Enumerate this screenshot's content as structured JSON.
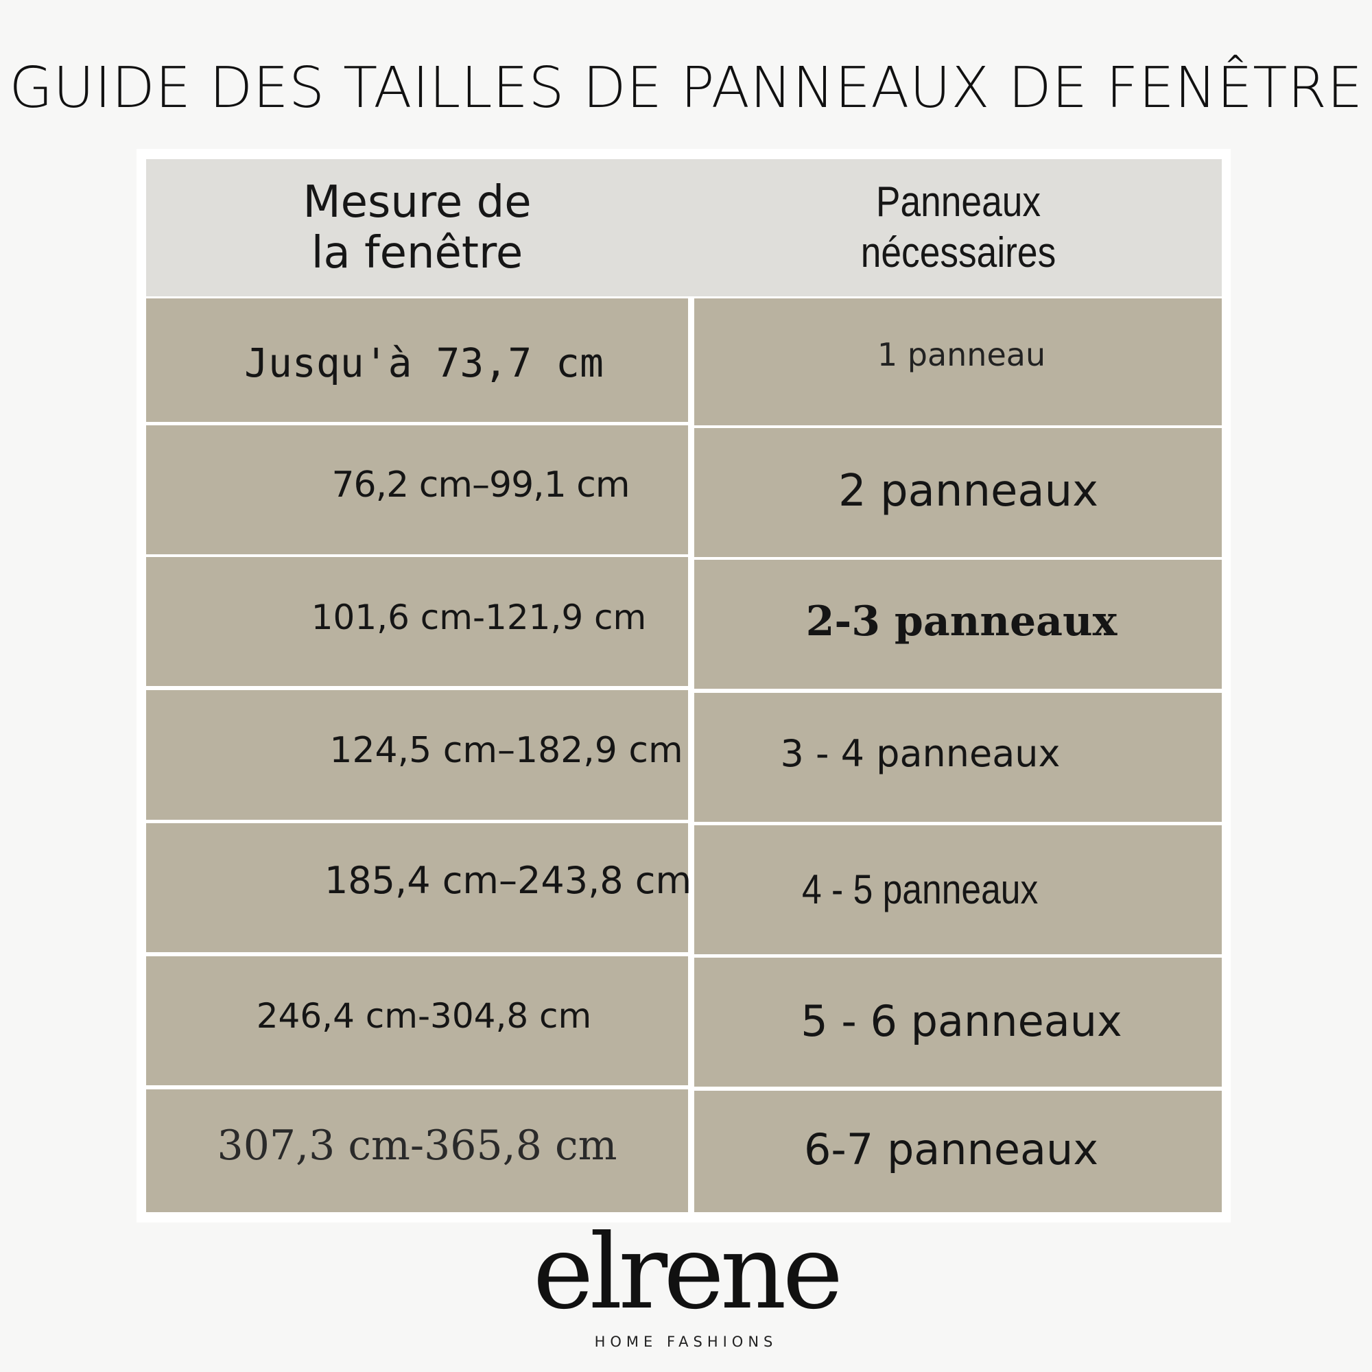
{
  "title": "GUIDE DES TAILLES DE PANNEAUX DE FENÊTRE",
  "table": {
    "headers": {
      "measure_line1": "Mesure de",
      "measure_line2": "la fenêtre",
      "panels_line1": "Panneaux",
      "panels_line2": "nécessaires"
    },
    "rows": [
      {
        "measure": "Jusqu'à 73,7 cm",
        "panels": "1 panneau"
      },
      {
        "measure": "76,2 cm–99,1 cm",
        "panels": "2 panneaux"
      },
      {
        "measure": "101,6 cm-121,9 cm",
        "panels": "2-3 panneaux"
      },
      {
        "measure": "124,5 cm–182,9 cm",
        "panels": "3 - 4 panneaux"
      },
      {
        "measure": "185,4 cm–243,8 cm",
        "panels": "4 - 5 panneaux"
      },
      {
        "measure": "246,4 cm-304,8 cm",
        "panels": "5 - 6 panneaux"
      },
      {
        "measure": "307,3 cm-365,8 cm",
        "panels": "6-7 panneaux"
      }
    ]
  },
  "logo": {
    "name": "elrene",
    "tagline": "HOME FASHIONS"
  },
  "colors": {
    "background": "#f7f7f6",
    "header_fill": "#dfdeda",
    "cell_fill": "#b9b2a0",
    "text": "#151515"
  }
}
